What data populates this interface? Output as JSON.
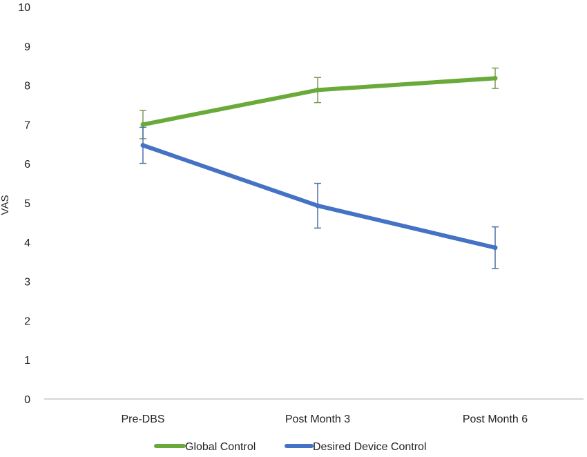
{
  "chart_data": {
    "type": "line",
    "title": "",
    "xlabel": "",
    "ylabel": "VAS",
    "ylim": [
      0,
      10
    ],
    "yticks": [
      0,
      1,
      2,
      3,
      4,
      5,
      6,
      7,
      8,
      9,
      10
    ],
    "categories": [
      "Pre-DBS",
      "Post Month 3",
      "Post Month 6"
    ],
    "grid": false,
    "legend_position": "bottom",
    "series": [
      {
        "name": "Global Control",
        "color": "#6aaa3a",
        "values": [
          7.0,
          7.88,
          8.18
        ],
        "error": [
          0.36,
          0.32,
          0.26
        ]
      },
      {
        "name": "Desired Device Control",
        "color": "#4472c4",
        "values": [
          6.47,
          4.93,
          3.86
        ],
        "error": [
          0.46,
          0.57,
          0.53
        ]
      }
    ]
  }
}
